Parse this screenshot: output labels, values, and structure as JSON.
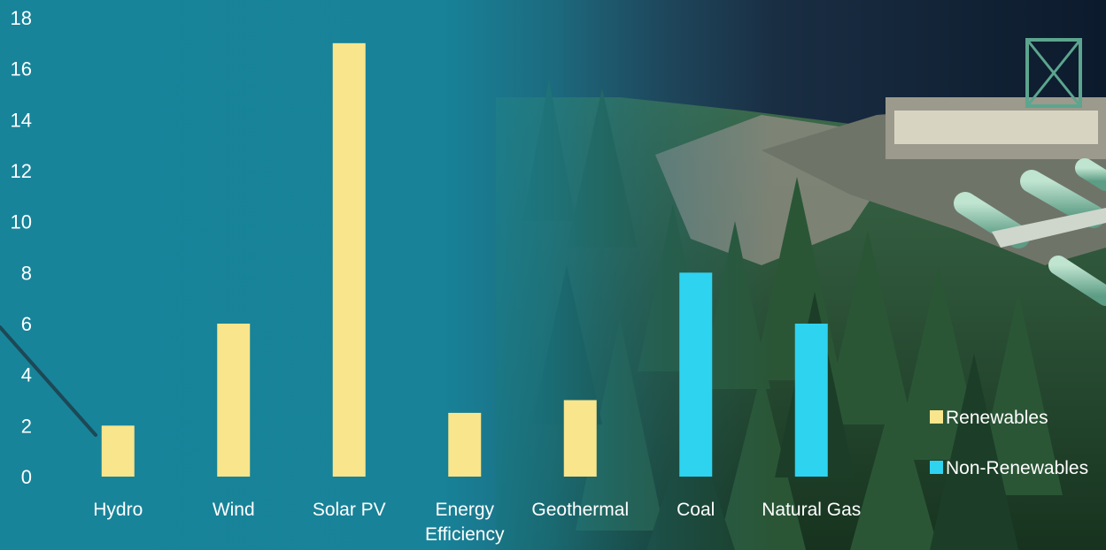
{
  "chart_data": {
    "type": "bar",
    "title": "",
    "xlabel": "",
    "ylabel": "",
    "ylim": [
      0,
      18
    ],
    "yticks": [
      "0",
      "2",
      "4",
      "6",
      "8",
      "10",
      "12",
      "14",
      "16",
      "18"
    ],
    "grid": false,
    "legend_position": "right",
    "categories": [
      "Hydro",
      "Wind",
      "Solar PV",
      "Energy Efficiency",
      "Geothermal",
      "Coal",
      "Natural Gas"
    ],
    "category_lines": [
      [
        "Hydro"
      ],
      [
        "Wind"
      ],
      [
        "Solar PV"
      ],
      [
        "Energy",
        "Efficiency"
      ],
      [
        "Geothermal"
      ],
      [
        "Coal"
      ],
      [
        "Natural Gas"
      ]
    ],
    "series": [
      {
        "name": "Renewables",
        "color": "#f9e58c",
        "values": [
          2,
          6,
          17,
          2.5,
          3,
          null,
          null
        ]
      },
      {
        "name": "Non-Renewables",
        "color": "#2ed3f0",
        "values": [
          null,
          null,
          null,
          null,
          null,
          8,
          6
        ]
      }
    ],
    "colors": {
      "background_left": "#17849a",
      "forest": "#1f4a2f",
      "text": "#ffffff"
    }
  }
}
